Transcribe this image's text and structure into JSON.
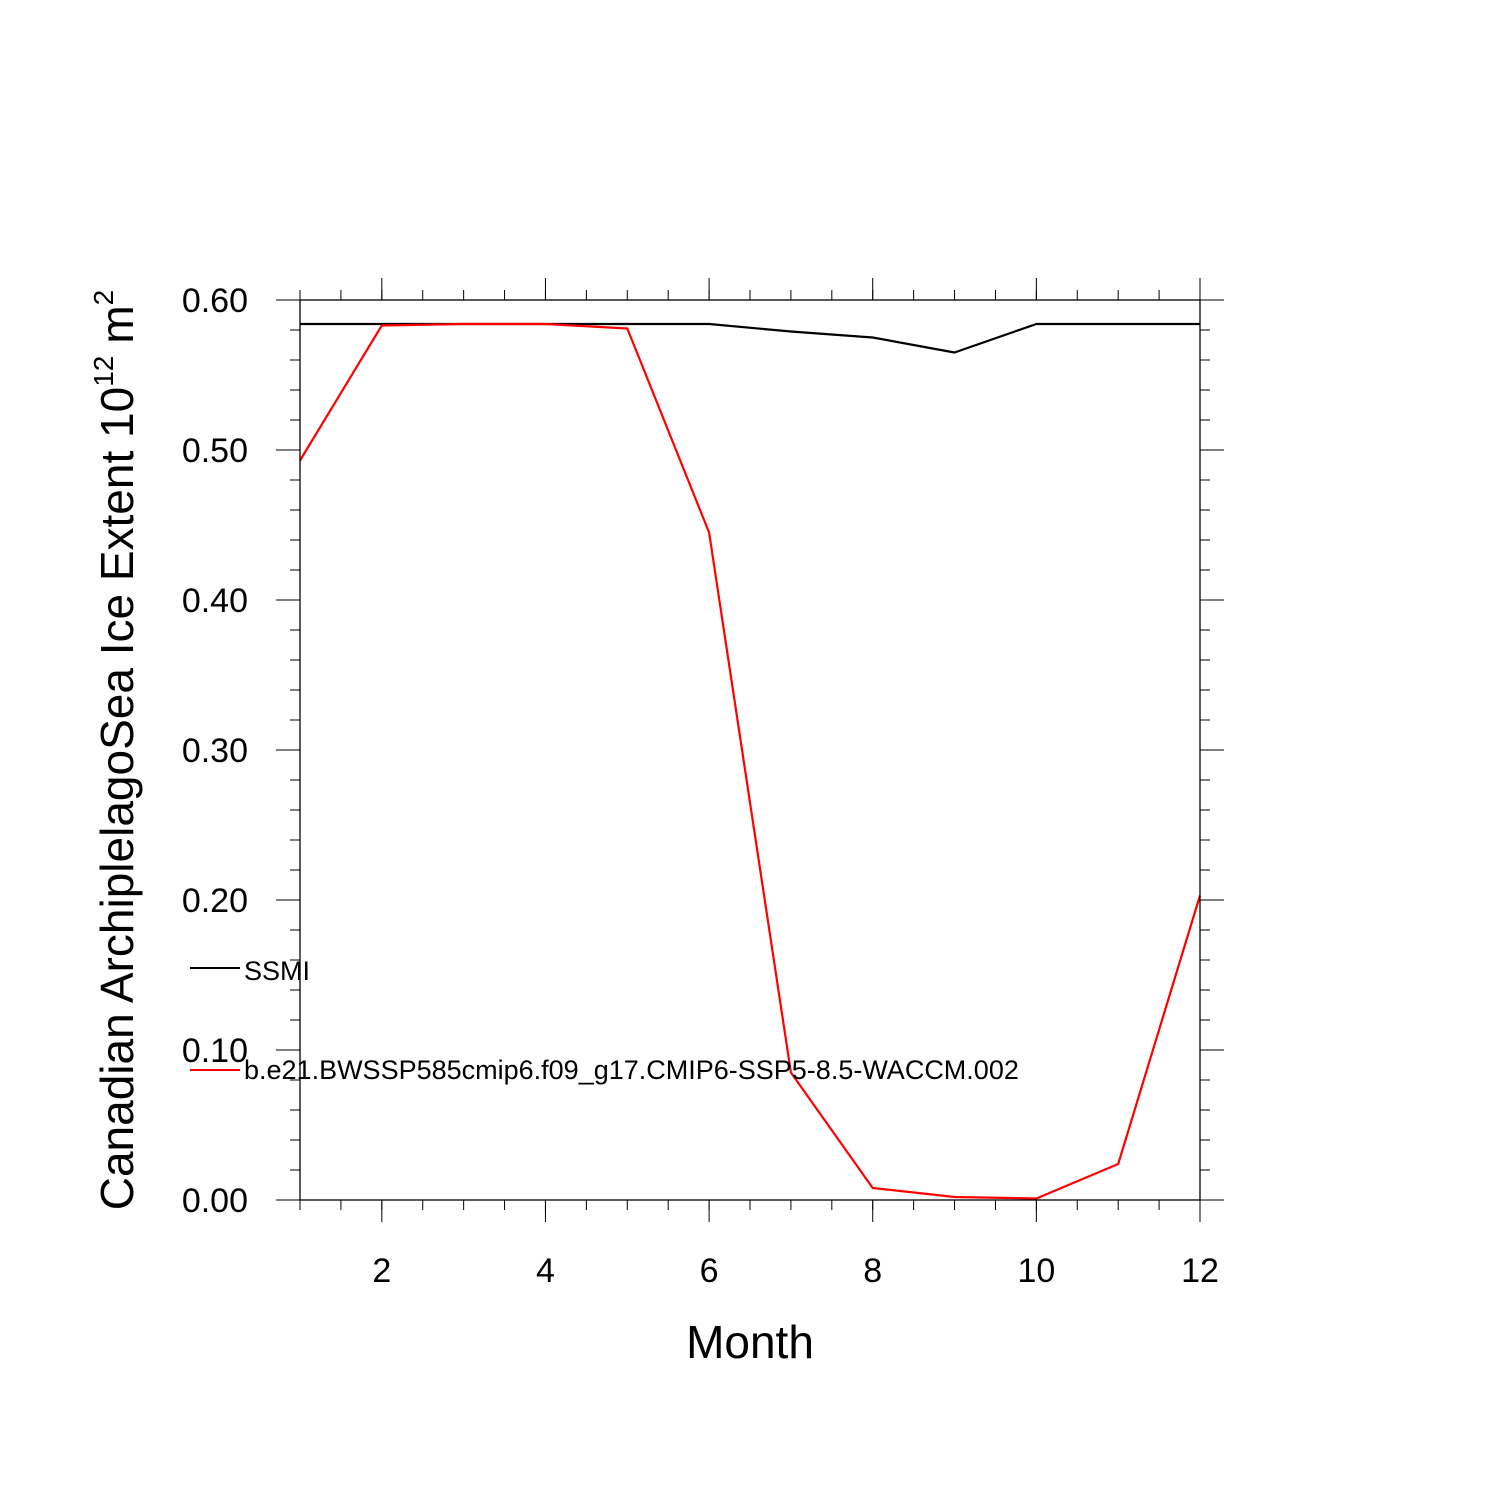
{
  "chart_data": {
    "type": "line",
    "xlabel": "Month",
    "ylabel": "Canadian ArchiplelagoSea Ice Extent 10",
    "ylabel_sup": "12",
    "ylabel_unit": "m",
    "ylabel_unit_sup": "2",
    "xlim": [
      1,
      12
    ],
    "ylim": [
      0,
      0.6
    ],
    "xticks": [
      2,
      4,
      6,
      8,
      10,
      12
    ],
    "xtick_labels": [
      "2",
      "4",
      "6",
      "8",
      "10",
      "12"
    ],
    "yticks": [
      0,
      0.1,
      0.2,
      0.3,
      0.4,
      0.5,
      0.6
    ],
    "ytick_labels": [
      "0.00",
      "0.10",
      "0.20",
      "0.30",
      "0.40",
      "0.50",
      "0.60"
    ],
    "grid": false,
    "legend_position": "left-inside",
    "x": [
      1,
      2,
      3,
      4,
      5,
      6,
      7,
      8,
      9,
      10,
      11,
      12
    ],
    "series": [
      {
        "name": "SSMI",
        "color": "#000000",
        "values": [
          0.584,
          0.584,
          0.584,
          0.584,
          0.584,
          0.584,
          0.579,
          0.575,
          0.565,
          0.584,
          0.584,
          0.584
        ]
      },
      {
        "name": "b.e21.BWSSP585cmip6.f09_g17.CMIP6-SSP5-8.5-WACCM.002",
        "color": "#ff0000",
        "values": [
          0.493,
          0.583,
          0.584,
          0.584,
          0.581,
          0.445,
          0.085,
          0.008,
          0.002,
          0.001,
          0.024,
          0.203
        ]
      }
    ]
  }
}
